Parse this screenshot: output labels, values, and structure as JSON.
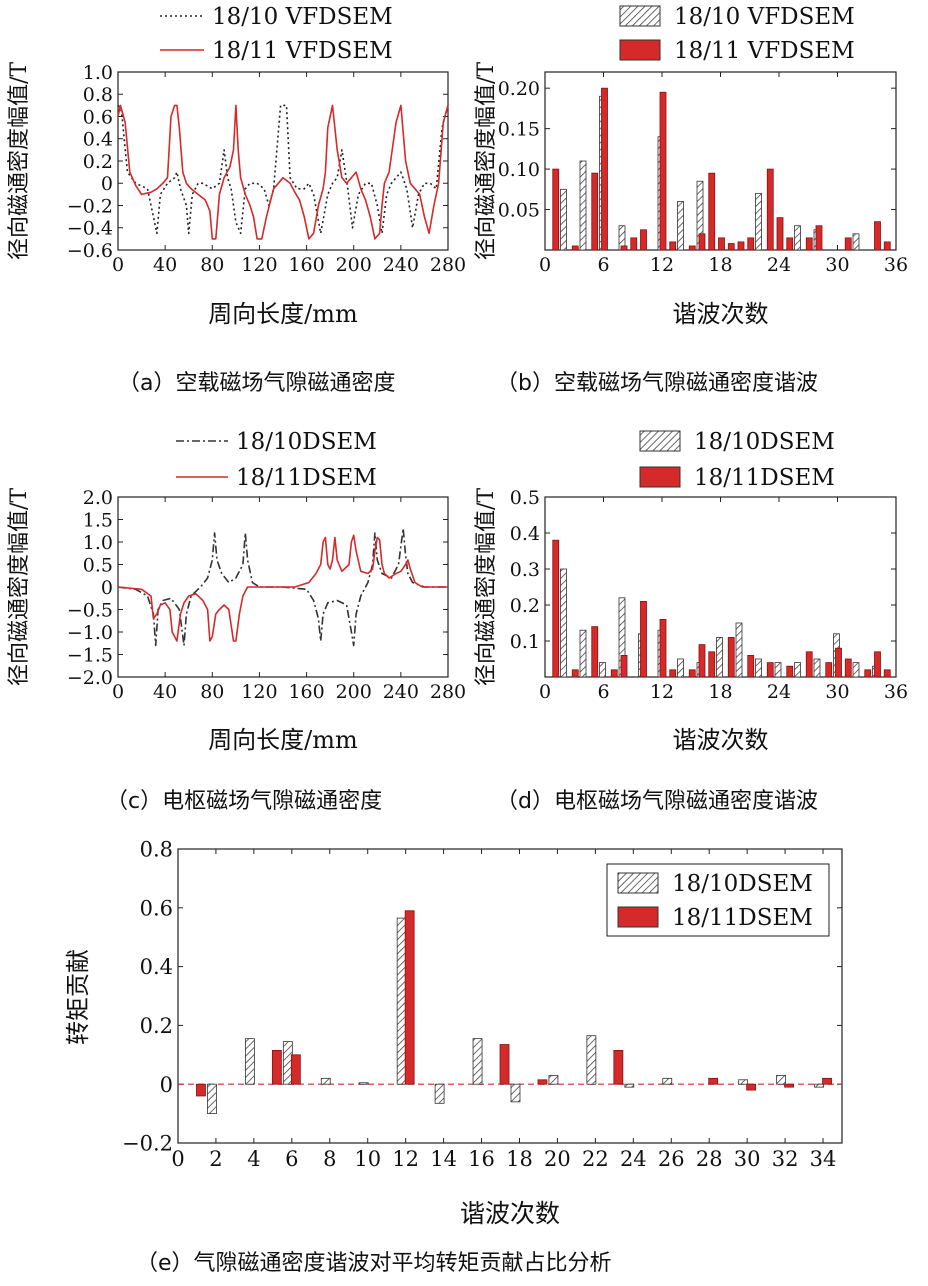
{
  "colors": {
    "red": "#d42a2a",
    "black": "#222222",
    "hatch": "#555555"
  },
  "chart_data": [
    {
      "id": "a",
      "type": "line",
      "caption": "（a）空载磁场气隙磁通密度",
      "xlabel": "周向长度/mm",
      "ylabel": "径向磁通密度幅值/T",
      "xlim": [
        0,
        280
      ],
      "ylim": [
        -0.6,
        1.0
      ],
      "xticks": [
        0,
        40,
        80,
        120,
        160,
        200,
        240,
        280
      ],
      "yticks": [
        -0.6,
        -0.4,
        -0.2,
        0,
        0.2,
        0.4,
        0.6,
        0.8,
        1.0
      ],
      "ytick_labels": [
        "−0.6",
        "−0.4",
        "−0.2",
        "0",
        "0.2",
        "0.4",
        "0.6",
        "0.8",
        "1.0"
      ],
      "series": [
        {
          "name": "18/10 VFDSEM",
          "style": "dotted",
          "color": "#222222",
          "x": [
            0,
            3,
            8,
            15,
            25,
            30,
            33,
            36,
            42,
            48,
            50,
            53,
            58,
            60,
            63,
            68,
            72,
            80,
            86,
            90,
            93,
            96,
            100,
            104,
            108,
            112,
            118,
            124,
            128,
            132,
            138,
            140,
            143,
            146,
            152,
            158,
            162,
            166,
            172,
            178,
            182,
            186,
            190,
            195,
            199,
            204,
            210,
            215,
            220,
            224,
            228,
            232,
            236,
            240,
            245,
            250,
            255,
            260,
            265,
            270,
            275,
            280
          ],
          "y": [
            0.7,
            0.65,
            0.1,
            0.0,
            -0.05,
            -0.3,
            -0.45,
            -0.1,
            0.0,
            0.05,
            0.1,
            -0.05,
            -0.2,
            -0.45,
            -0.1,
            0.0,
            0.0,
            -0.05,
            0.0,
            0.3,
            0.05,
            -0.05,
            -0.35,
            -0.45,
            -0.05,
            0.0,
            0.0,
            -0.05,
            -0.2,
            -0.05,
            0.7,
            0.7,
            0.7,
            0.05,
            -0.05,
            -0.05,
            0.0,
            -0.1,
            -0.45,
            -0.1,
            0.0,
            0.05,
            0.3,
            -0.05,
            -0.4,
            -0.1,
            0.0,
            0.0,
            -0.2,
            -0.45,
            -0.1,
            0.0,
            0.05,
            0.1,
            -0.05,
            -0.4,
            -0.1,
            0.0,
            0.0,
            -0.05,
            0.5,
            0.7
          ]
        },
        {
          "name": "18/11 VFDSEM",
          "style": "solid",
          "color": "#d42a2a",
          "x": [
            0,
            2,
            6,
            10,
            15,
            20,
            28,
            33,
            38,
            42,
            45,
            48,
            50,
            52,
            55,
            58,
            62,
            68,
            74,
            78,
            80,
            83,
            86,
            90,
            95,
            98,
            100,
            102,
            104,
            108,
            112,
            115,
            118,
            122,
            126,
            132,
            136,
            140,
            146,
            150,
            154,
            158,
            162,
            166,
            170,
            174,
            176,
            178,
            182,
            186,
            190,
            194,
            198,
            202,
            206,
            210,
            214,
            218,
            222,
            224,
            226,
            230,
            236,
            240,
            244,
            248,
            252,
            256,
            260,
            264,
            268,
            272,
            276,
            280
          ],
          "y": [
            0.6,
            0.7,
            0.55,
            0.1,
            -0.02,
            -0.1,
            -0.08,
            -0.05,
            0.0,
            0.05,
            0.6,
            0.7,
            0.7,
            0.5,
            0.1,
            0.0,
            -0.05,
            -0.1,
            -0.15,
            -0.25,
            -0.5,
            -0.5,
            -0.1,
            0.05,
            0.15,
            0.3,
            0.7,
            0.3,
            0.05,
            -0.1,
            -0.2,
            -0.3,
            -0.5,
            -0.5,
            -0.3,
            -0.05,
            0.0,
            0.05,
            0.0,
            -0.08,
            -0.15,
            -0.3,
            -0.5,
            -0.45,
            -0.2,
            -0.05,
            0.1,
            0.5,
            0.7,
            0.3,
            0.05,
            0.0,
            0.05,
            0.1,
            -0.05,
            -0.15,
            -0.3,
            -0.5,
            -0.45,
            -0.2,
            0.0,
            0.1,
            0.55,
            0.7,
            0.2,
            0.0,
            -0.05,
            -0.1,
            -0.3,
            -0.45,
            -0.2,
            0.0,
            0.55,
            0.7
          ]
        }
      ]
    },
    {
      "id": "b",
      "type": "bar",
      "caption": "（b）空载磁场气隙磁通密度谐波",
      "xlabel": "谐波次数",
      "ylabel": "径向磁通密度幅值/T",
      "xlim": [
        0,
        36
      ],
      "ylim": [
        0,
        0.22
      ],
      "xticks": [
        0,
        6,
        12,
        18,
        24,
        30,
        36
      ],
      "yticks": [
        0.05,
        0.1,
        0.15,
        0.2
      ],
      "ytick_labels": [
        "0.05",
        "0.10",
        "0.15",
        "0.20"
      ],
      "categories": [
        1,
        2,
        3,
        4,
        5,
        6,
        7,
        8,
        9,
        10,
        11,
        12,
        13,
        14,
        15,
        16,
        17,
        18,
        19,
        20,
        21,
        22,
        23,
        24,
        25,
        26,
        27,
        28,
        29,
        30,
        31,
        32,
        33,
        34,
        35
      ],
      "series": [
        {
          "name": "18/10 VFDSEM",
          "fill": "hatch",
          "values": [
            0.0,
            0.075,
            0.0,
            0.11,
            0.0,
            0.19,
            0.0,
            0.03,
            0.0,
            0.0,
            0.0,
            0.14,
            0.0,
            0.06,
            0.0,
            0.085,
            0.0,
            0.0,
            0.0,
            0.0,
            0.0,
            0.07,
            0.0,
            0.0,
            0.0,
            0.03,
            0.0,
            0.025,
            0.0,
            0.0,
            0.0,
            0.02,
            0.0,
            0.0,
            0.0
          ]
        },
        {
          "name": "18/11 VFDSEM",
          "fill": "red",
          "values": [
            0.1,
            0.0,
            0.005,
            0.0,
            0.095,
            0.2,
            0.0,
            0.005,
            0.015,
            0.025,
            0.0,
            0.195,
            0.01,
            0.0,
            0.005,
            0.02,
            0.095,
            0.015,
            0.008,
            0.01,
            0.015,
            0.0,
            0.1,
            0.04,
            0.015,
            0.0,
            0.015,
            0.03,
            0.0,
            0.0,
            0.015,
            0.0,
            0.0,
            0.035,
            0.01
          ]
        }
      ]
    },
    {
      "id": "c",
      "type": "line",
      "caption": "（c）电枢磁场气隙磁通密度",
      "xlabel": "周向长度/mm",
      "ylabel": "径向磁通密度幅值/T",
      "xlim": [
        0,
        280
      ],
      "ylim": [
        -2.0,
        2.0
      ],
      "xticks": [
        0,
        40,
        80,
        120,
        160,
        200,
        240,
        280
      ],
      "yticks": [
        -2.0,
        -1.5,
        -1.0,
        -0.5,
        0,
        0.5,
        1.0,
        1.5,
        2.0
      ],
      "ytick_labels": [
        "−2.0",
        "−1.5",
        "−1.0",
        "−0.5",
        "0",
        "0.5",
        "1.0",
        "1.5",
        "2.0"
      ],
      "series": [
        {
          "name": "18/10DSEM",
          "style": "dashdot",
          "color": "#333333",
          "x": [
            0,
            15,
            25,
            30,
            32,
            34,
            38,
            45,
            52,
            56,
            58,
            62,
            70,
            76,
            80,
            82,
            84,
            88,
            94,
            100,
            106,
            108,
            110,
            114,
            120,
            140,
            160,
            166,
            170,
            172,
            174,
            178,
            186,
            194,
            198,
            200,
            202,
            206,
            212,
            216,
            218,
            220,
            224,
            232,
            238,
            242,
            244,
            246,
            250,
            260,
            280
          ],
          "y": [
            0.0,
            -0.05,
            -0.2,
            -0.6,
            -1.3,
            -0.5,
            -0.3,
            -0.25,
            -0.5,
            -1.3,
            -0.6,
            -0.2,
            0.0,
            0.2,
            0.6,
            1.2,
            0.6,
            0.3,
            0.1,
            0.2,
            0.5,
            1.2,
            0.6,
            0.1,
            0.0,
            0.0,
            -0.05,
            -0.3,
            -0.7,
            -1.2,
            -0.6,
            -0.35,
            -0.3,
            -0.4,
            -1.0,
            -1.3,
            -0.6,
            -0.2,
            0.1,
            0.5,
            1.2,
            0.6,
            0.3,
            0.2,
            0.5,
            1.3,
            0.7,
            0.3,
            0.1,
            0.0,
            0.0
          ]
        }
      ]
    },
    {
      "id": "c2",
      "type": "line",
      "series": [
        {
          "name": "18/11DSEM",
          "style": "solid",
          "color": "#d42a2a",
          "x": [
            0,
            20,
            28,
            30,
            33,
            36,
            40,
            44,
            46,
            50,
            53,
            56,
            60,
            66,
            72,
            76,
            78,
            80,
            83,
            86,
            90,
            94,
            98,
            100,
            103,
            106,
            110,
            118,
            130,
            150,
            162,
            168,
            172,
            174,
            176,
            178,
            180,
            182,
            184,
            186,
            190,
            196,
            198,
            200,
            202,
            206,
            212,
            216,
            218,
            220,
            222,
            224,
            226,
            230,
            236,
            240,
            244,
            246,
            248,
            252,
            258,
            266,
            280
          ],
          "y": [
            0.0,
            -0.05,
            -0.2,
            -0.7,
            -0.6,
            -0.4,
            -0.35,
            -0.5,
            -1.0,
            -1.2,
            -0.6,
            -0.35,
            -0.2,
            -0.15,
            -0.3,
            -0.5,
            -1.2,
            -1.1,
            -0.6,
            -0.5,
            -0.4,
            -0.5,
            -1.2,
            -1.2,
            -0.6,
            -0.2,
            0.0,
            0.0,
            0.0,
            0.0,
            0.1,
            0.3,
            0.5,
            1.0,
            1.1,
            0.5,
            0.4,
            0.6,
            1.1,
            0.6,
            0.35,
            0.5,
            1.0,
            1.15,
            0.8,
            0.35,
            0.3,
            0.4,
            0.8,
            1.1,
            1.05,
            0.5,
            0.3,
            0.2,
            0.3,
            0.35,
            0.5,
            0.6,
            0.4,
            0.1,
            0.0,
            0.0,
            0.0
          ]
        }
      ]
    },
    {
      "id": "d",
      "type": "bar",
      "caption": "（d）电枢磁场气隙磁通密度谐波",
      "xlabel": "谐波次数",
      "ylabel": "径向磁通密度幅值/T",
      "xlim": [
        0,
        36
      ],
      "ylim": [
        0,
        0.5
      ],
      "xticks": [
        0,
        6,
        12,
        18,
        24,
        30,
        36
      ],
      "yticks": [
        0.1,
        0.2,
        0.3,
        0.4,
        0.5
      ],
      "ytick_labels": [
        "0.1",
        "0.2",
        "0.3",
        "0.4",
        "0.5"
      ],
      "categories": [
        1,
        2,
        3,
        4,
        5,
        6,
        7,
        8,
        9,
        10,
        11,
        12,
        13,
        14,
        15,
        16,
        17,
        18,
        19,
        20,
        21,
        22,
        23,
        24,
        25,
        26,
        27,
        28,
        29,
        30,
        31,
        32,
        33,
        34,
        35
      ],
      "series": [
        {
          "name": "18/10DSEM",
          "fill": "hatch",
          "values": [
            0.0,
            0.3,
            0.0,
            0.13,
            0.0,
            0.04,
            0.0,
            0.22,
            0.0,
            0.12,
            0.0,
            0.13,
            0.0,
            0.05,
            0.0,
            0.04,
            0.0,
            0.11,
            0.0,
            0.15,
            0.0,
            0.05,
            0.0,
            0.04,
            0.0,
            0.04,
            0.0,
            0.05,
            0.0,
            0.12,
            0.0,
            0.04,
            0.0,
            0.03,
            0.0
          ]
        },
        {
          "name": "18/11DSEM",
          "fill": "red",
          "values": [
            0.38,
            0.0,
            0.02,
            0.0,
            0.14,
            0.0,
            0.02,
            0.06,
            0.0,
            0.21,
            0.0,
            0.16,
            0.02,
            0.0,
            0.02,
            0.09,
            0.07,
            0.0,
            0.11,
            0.0,
            0.06,
            0.0,
            0.04,
            0.0,
            0.03,
            0.0,
            0.07,
            0.0,
            0.04,
            0.08,
            0.05,
            0.0,
            0.02,
            0.07,
            0.02
          ]
        }
      ]
    },
    {
      "id": "e",
      "type": "bar",
      "caption": "（e）气隙磁通密度谐波对平均转矩贡献占比分析",
      "xlabel": "谐波次数",
      "ylabel": "转矩贡献",
      "xlim": [
        0,
        35
      ],
      "ylim": [
        -0.2,
        0.8
      ],
      "xticks": [
        0,
        2,
        4,
        6,
        8,
        10,
        12,
        14,
        16,
        18,
        20,
        22,
        24,
        26,
        28,
        30,
        32,
        34
      ],
      "yticks": [
        -0.2,
        0,
        0.2,
        0.4,
        0.6,
        0.8
      ],
      "ytick_labels": [
        "−0.2",
        "0",
        "0.2",
        "0.4",
        "0.6",
        "0.8"
      ],
      "categories": [
        1,
        2,
        3,
        4,
        5,
        6,
        7,
        8,
        9,
        10,
        11,
        12,
        13,
        14,
        15,
        16,
        17,
        18,
        19,
        20,
        21,
        22,
        23,
        24,
        25,
        26,
        27,
        28,
        29,
        30,
        31,
        32,
        33,
        34
      ],
      "series": [
        {
          "name": "18/10DSEM",
          "fill": "hatch",
          "values": [
            0.0,
            -0.1,
            0.0,
            0.155,
            0.0,
            0.145,
            0.0,
            0.02,
            0.0,
            0.005,
            0.0,
            0.565,
            0.0,
            -0.065,
            0.0,
            0.155,
            0.0,
            -0.06,
            0.0,
            0.03,
            0.0,
            0.165,
            0.0,
            -0.01,
            0.0,
            0.02,
            0.0,
            0.0,
            0.0,
            0.015,
            0.0,
            0.03,
            0.0,
            -0.01
          ]
        },
        {
          "name": "18/11DSEM",
          "fill": "red",
          "values": [
            -0.04,
            0.0,
            0.0,
            0.0,
            0.115,
            0.1,
            0.0,
            0.0,
            0.0,
            0.0,
            0.0,
            0.59,
            0.0,
            0.0,
            0.0,
            0.0,
            0.135,
            0.0,
            0.015,
            0.0,
            0.0,
            0.0,
            0.115,
            0.0,
            0.0,
            0.0,
            0.0,
            0.02,
            0.0,
            -0.02,
            0.0,
            -0.01,
            0.0,
            0.02
          ]
        }
      ]
    }
  ]
}
